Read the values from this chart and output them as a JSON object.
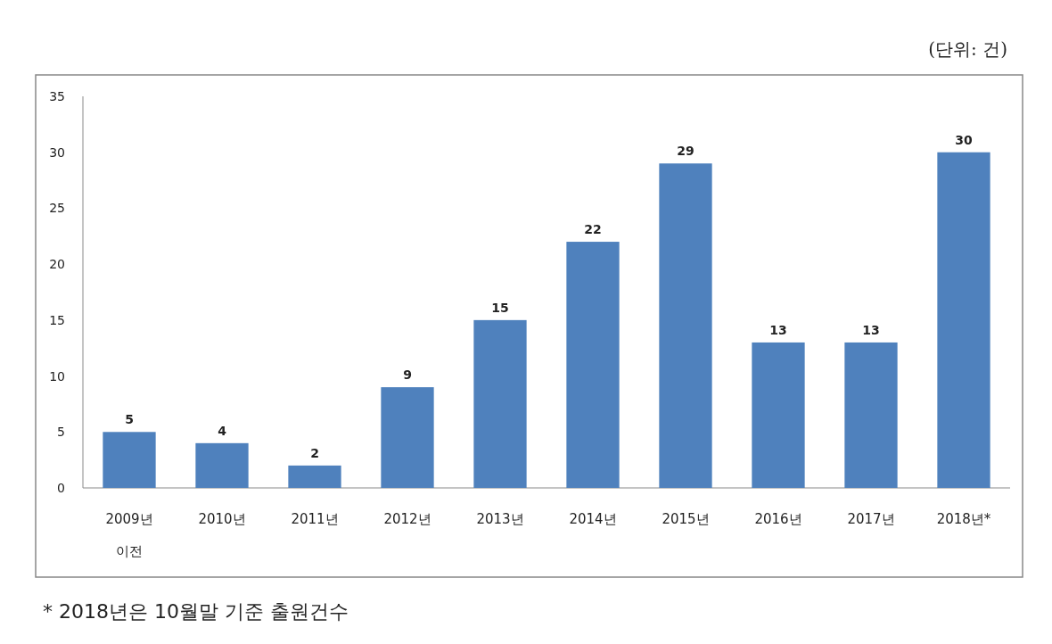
{
  "chart_data": {
    "type": "bar",
    "categories": [
      "2009년\n이전",
      "2010년",
      "2011년",
      "2012년",
      "2013년",
      "2014년",
      "2015년",
      "2016년",
      "2017년",
      "2018년*"
    ],
    "values": [
      5,
      4,
      2,
      9,
      15,
      22,
      29,
      13,
      13,
      30
    ],
    "color": "#4f81bd",
    "ylim": [
      0,
      35
    ],
    "yticks": [
      0,
      5,
      10,
      15,
      20,
      25,
      30,
      35
    ],
    "grid": false,
    "data_labels": true,
    "annotations": [
      "(단위: 건)",
      "* 2018년은 10월말 기준 출원건수"
    ]
  }
}
